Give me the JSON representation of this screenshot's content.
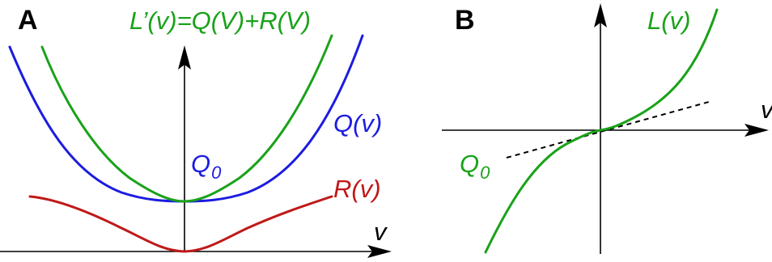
{
  "colors": {
    "L": "#1aa21a",
    "Q": "#1c1ce0",
    "R": "#c01818",
    "axis": "#000000",
    "tangent": "#000000"
  },
  "panel_a": {
    "letter": "A",
    "label_L": "L’(v)=Q(V)+R(V)",
    "label_Q": "Q(v)",
    "label_R": "R(v)",
    "label_Q0": "Q",
    "label_Q0_sub": "0",
    "axis_label_v": "v"
  },
  "panel_b": {
    "letter": "B",
    "label_L": "L(v)",
    "label_Q0": "Q",
    "label_Q0_sub": "0",
    "axis_label_v": "v"
  }
}
